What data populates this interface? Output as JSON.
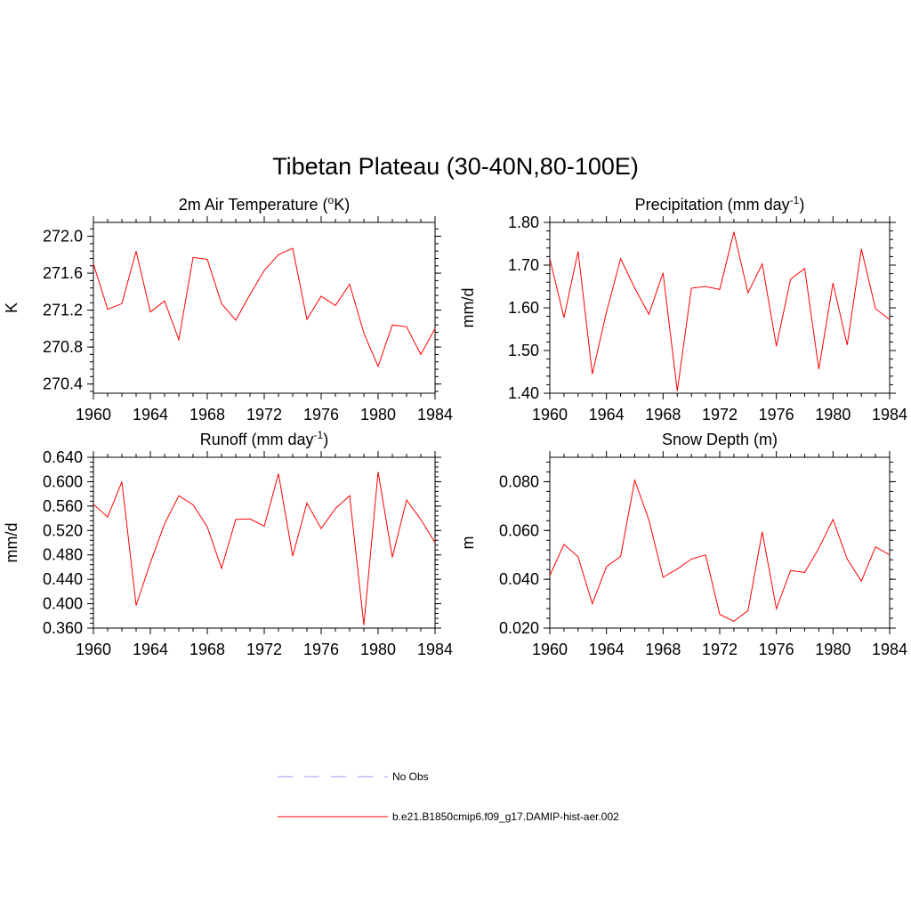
{
  "main_title": "Tibetan Plateau (30-40N,80-100E)",
  "colors": {
    "model_line": "#ff0000",
    "obs_line": "#9999ff",
    "axes": "#000000"
  },
  "legend": {
    "obs_label": "No Obs",
    "model_label": "b.e21.B1850cmip6.f09_g17.DAMIP-hist-aer.002"
  },
  "chart_data": [
    {
      "type": "line",
      "title_prefix": "2m Air Temperature (",
      "title_sup": "o",
      "title_suffix": "K)",
      "xlabel": "",
      "ylabel": "K",
      "xlim": [
        1960,
        1984
      ],
      "ylim": [
        270.3,
        272.15
      ],
      "x_ticks": [
        1960,
        1964,
        1968,
        1972,
        1976,
        1980,
        1984
      ],
      "y_ticks": [
        "270.4",
        "270.8",
        "271.2",
        "271.6",
        "272.0"
      ],
      "y_minor_step": 0.08,
      "series": [
        {
          "x": [
            1960,
            1961,
            1962,
            1963,
            1964,
            1965,
            1966,
            1967,
            1968,
            1969,
            1970,
            1971,
            1972,
            1973,
            1974,
            1975,
            1976,
            1977,
            1978,
            1979,
            1980,
            1981,
            1982,
            1983,
            1984
          ],
          "values": [
            271.7,
            271.21,
            271.27,
            271.84,
            271.18,
            271.3,
            270.88,
            271.77,
            271.75,
            271.27,
            271.09,
            271.37,
            271.63,
            271.8,
            271.87,
            271.1,
            271.35,
            271.25,
            271.48,
            270.95,
            270.59,
            271.04,
            271.02,
            270.72,
            271.0
          ]
        }
      ]
    },
    {
      "type": "line",
      "title_prefix": "Precipitation (mm day",
      "title_sup": "-1",
      "title_suffix": ")",
      "xlabel": "",
      "ylabel": "mm/d",
      "xlim": [
        1960,
        1984
      ],
      "ylim": [
        1.4,
        1.8
      ],
      "x_ticks": [
        1960,
        1964,
        1968,
        1972,
        1976,
        1980,
        1984
      ],
      "y_ticks": [
        "1.40",
        "1.50",
        "1.60",
        "1.70",
        "1.80"
      ],
      "y_minor_step": 0.02,
      "series": [
        {
          "x": [
            1960,
            1961,
            1962,
            1963,
            1964,
            1965,
            1966,
            1967,
            1968,
            1969,
            1970,
            1971,
            1972,
            1973,
            1974,
            1975,
            1976,
            1977,
            1978,
            1979,
            1980,
            1981,
            1982,
            1983,
            1984
          ],
          "values": [
            1.715,
            1.577,
            1.732,
            1.445,
            1.59,
            1.715,
            1.646,
            1.585,
            1.682,
            1.405,
            1.646,
            1.65,
            1.643,
            1.778,
            1.635,
            1.703,
            1.51,
            1.667,
            1.692,
            1.456,
            1.658,
            1.513,
            1.738,
            1.598,
            1.572
          ]
        }
      ]
    },
    {
      "type": "line",
      "title_prefix": "Runoff (mm day",
      "title_sup": "-1",
      "title_suffix": ")",
      "xlabel": "",
      "ylabel": "mm/d",
      "xlim": [
        1960,
        1984
      ],
      "ylim": [
        0.36,
        0.64
      ],
      "x_ticks": [
        1960,
        1964,
        1968,
        1972,
        1976,
        1980,
        1984
      ],
      "y_ticks": [
        "0.360",
        "0.400",
        "0.440",
        "0.480",
        "0.520",
        "0.560",
        "0.600",
        "0.640"
      ],
      "y_minor_step": 0.008,
      "series": [
        {
          "x": [
            1960,
            1961,
            1962,
            1963,
            1964,
            1965,
            1966,
            1967,
            1968,
            1969,
            1970,
            1971,
            1972,
            1973,
            1974,
            1975,
            1976,
            1977,
            1978,
            1979,
            1980,
            1981,
            1982,
            1983,
            1984
          ],
          "values": [
            0.563,
            0.542,
            0.6,
            0.397,
            0.467,
            0.531,
            0.577,
            0.562,
            0.526,
            0.458,
            0.538,
            0.539,
            0.527,
            0.613,
            0.478,
            0.565,
            0.523,
            0.556,
            0.577,
            0.365,
            0.616,
            0.476,
            0.57,
            0.538,
            0.5
          ]
        }
      ]
    },
    {
      "type": "line",
      "title_prefix": "Snow Depth (m)",
      "title_sup": "",
      "title_suffix": "",
      "xlabel": "",
      "ylabel": "m",
      "xlim": [
        1960,
        1984
      ],
      "ylim": [
        0.02,
        0.09
      ],
      "x_ticks": [
        1960,
        1964,
        1968,
        1972,
        1976,
        1980,
        1984
      ],
      "y_ticks": [
        "0.020",
        "0.040",
        "0.060",
        "0.080"
      ],
      "y_minor_step": 0.004,
      "series": [
        {
          "x": [
            1960,
            1961,
            1962,
            1963,
            1964,
            1965,
            1966,
            1967,
            1968,
            1969,
            1970,
            1971,
            1972,
            1973,
            1974,
            1975,
            1976,
            1977,
            1978,
            1979,
            1980,
            1981,
            1982,
            1983,
            1984
          ],
          "values": [
            0.0415,
            0.0543,
            0.0492,
            0.03,
            0.0452,
            0.0494,
            0.0806,
            0.0643,
            0.0408,
            0.0442,
            0.0483,
            0.05,
            0.0256,
            0.0228,
            0.0272,
            0.0594,
            0.0279,
            0.0436,
            0.0428,
            0.0527,
            0.0645,
            0.0483,
            0.0392,
            0.0533,
            0.05
          ]
        }
      ]
    }
  ]
}
